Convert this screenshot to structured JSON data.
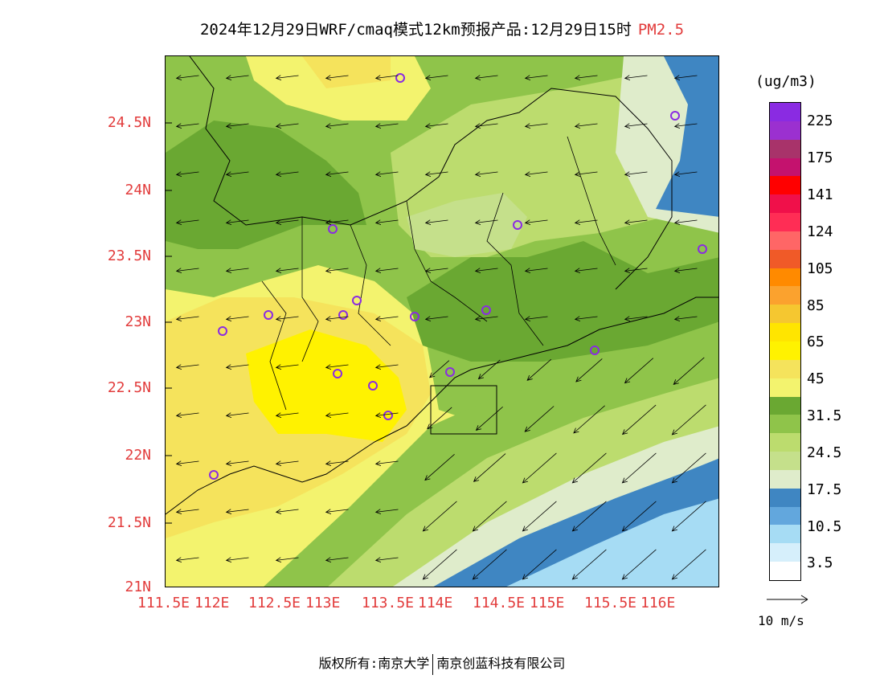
{
  "title": {
    "main": "2024年12月29日WRF/cmaq模式12km预报产品:12月29日15时",
    "variable": "PM2.5",
    "variable_color": "#e23c3c"
  },
  "map": {
    "lat_ticks": [
      "24.5N",
      "24N",
      "23.5N",
      "23N",
      "22.5N",
      "22N",
      "21.5N",
      "21N"
    ],
    "lon_ticks": [
      "111.5E",
      "112E",
      "112.5E",
      "113E",
      "113.5E",
      "114E",
      "114.5E",
      "115E",
      "115.5E",
      "116E"
    ],
    "tick_color": "#e23c3c",
    "station_marker": "purple-circle-icon",
    "wind_arrow": "arrow-icon"
  },
  "legend": {
    "unit": "(ug/m3)",
    "labels": [
      "225",
      "175",
      "141",
      "124",
      "105",
      "85",
      "65",
      "45",
      "31.5",
      "24.5",
      "17.5",
      "10.5",
      "3.5"
    ],
    "colors_top_to_bottom": [
      "#8a2be2",
      "#9b30d0",
      "#a8336a",
      "#c4126e",
      "#ff0000",
      "#f0104a",
      "#ff2d55",
      "#ff6666",
      "#f05a28",
      "#ff8a00",
      "#fba22e",
      "#f5c730",
      "#ffe500",
      "#fff200",
      "#f5e35c",
      "#f3f36e",
      "#6aa832",
      "#8fc44a",
      "#bcdc6e",
      "#c5e08b",
      "#dfeccb",
      "#3f86c2",
      "#62a7dd",
      "#a6dcf4",
      "#d6effb",
      "#ffffff"
    ]
  },
  "wind_key": {
    "label": "10 m/s"
  },
  "copyright": {
    "owner": "版权所有:南京大学",
    "partner": "南京创蓝科技有限公司"
  }
}
